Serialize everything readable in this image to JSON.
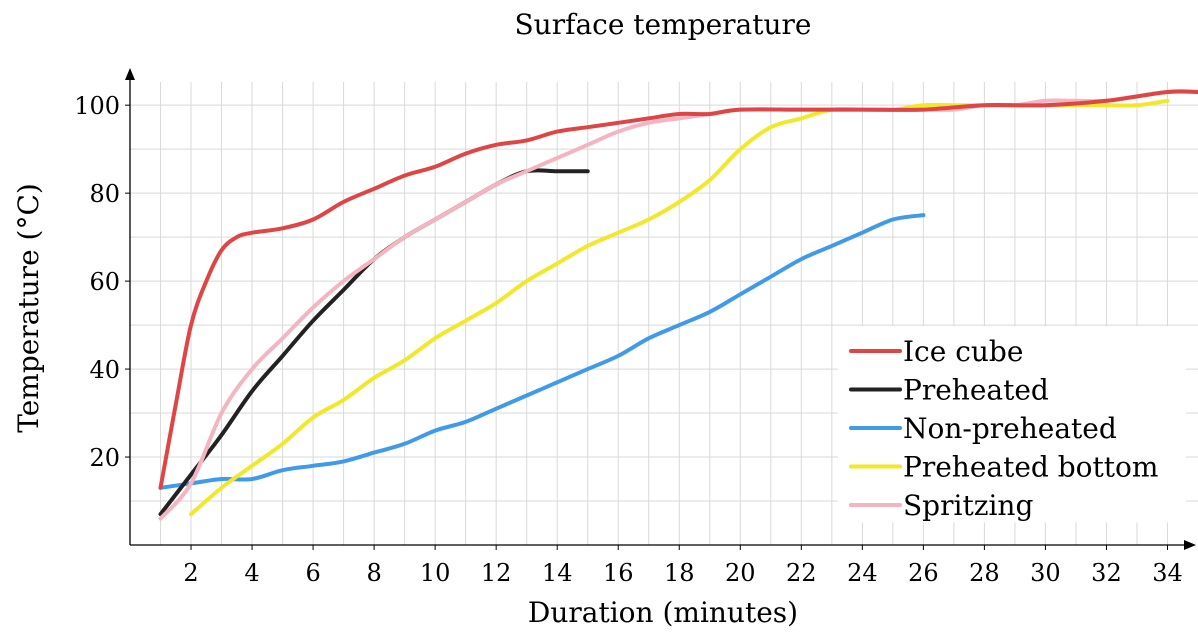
{
  "chart_data": {
    "type": "line",
    "title": "Surface temperature",
    "xlabel": "Duration (minutes)",
    "ylabel": "Temperature (°C)",
    "xlim": [
      0,
      35
    ],
    "ylim": [
      0,
      108
    ],
    "x_ticks": [
      2,
      4,
      6,
      8,
      10,
      12,
      14,
      16,
      18,
      20,
      22,
      24,
      26,
      28,
      30,
      32,
      34
    ],
    "y_ticks": [
      20,
      40,
      60,
      80,
      100
    ],
    "grid": true,
    "legend_position": "bottom-right",
    "series": [
      {
        "name": "Ice cube",
        "color": "#e04545",
        "x": [
          1,
          1.5,
          2,
          2.5,
          3,
          3.5,
          4,
          5,
          6,
          7,
          8,
          9,
          10,
          11,
          12,
          13,
          14,
          15,
          16,
          17,
          18,
          19,
          20,
          22,
          24,
          26,
          28,
          30,
          32,
          34,
          35
        ],
        "y": [
          13,
          32,
          50,
          60,
          67,
          70,
          71,
          72,
          74,
          78,
          81,
          84,
          86,
          89,
          91,
          92,
          94,
          95,
          96,
          97,
          98,
          98,
          99,
          99,
          99,
          99,
          100,
          100,
          101,
          103,
          103
        ]
      },
      {
        "name": "Preheated",
        "color": "#222222",
        "x": [
          1,
          2,
          3,
          4,
          5,
          6,
          7,
          8,
          9,
          10,
          11,
          12,
          13,
          14,
          15
        ],
        "y": [
          7,
          16,
          25,
          35,
          43,
          51,
          58,
          65,
          70,
          74,
          78,
          82,
          85,
          85,
          85
        ]
      },
      {
        "name": "Non-preheated",
        "color": "#3f9be8",
        "x": [
          1,
          2,
          3,
          4,
          5,
          6,
          7,
          8,
          9,
          10,
          11,
          12,
          13,
          14,
          15,
          16,
          17,
          18,
          19,
          20,
          21,
          22,
          23,
          24,
          25,
          26
        ],
        "y": [
          13,
          14,
          15,
          15,
          17,
          18,
          19,
          21,
          23,
          26,
          28,
          31,
          34,
          37,
          40,
          43,
          47,
          50,
          53,
          57,
          61,
          65,
          68,
          71,
          74,
          75
        ]
      },
      {
        "name": "Preheated bottom",
        "color": "#f2e82a",
        "x": [
          2,
          3,
          4,
          5,
          6,
          7,
          8,
          9,
          10,
          11,
          12,
          13,
          14,
          15,
          16,
          17,
          18,
          19,
          20,
          21,
          22,
          23,
          24,
          25,
          26,
          27,
          28,
          29,
          30,
          31,
          32,
          33,
          34
        ],
        "y": [
          7,
          13,
          18,
          23,
          29,
          33,
          38,
          42,
          47,
          51,
          55,
          60,
          64,
          68,
          71,
          74,
          78,
          83,
          90,
          95,
          97,
          99,
          99,
          99,
          100,
          100,
          100,
          100,
          100,
          100,
          100,
          100,
          101
        ]
      },
      {
        "name": "Spritzing",
        "color": "#f4b5c0",
        "x": [
          1,
          2,
          3,
          4,
          5,
          6,
          7,
          8,
          9,
          10,
          11,
          12,
          13,
          14,
          15,
          16,
          17,
          18,
          19,
          20,
          22,
          24,
          26,
          27,
          28,
          29,
          30,
          31,
          32,
          33,
          34,
          35
        ],
        "y": [
          6,
          14,
          30,
          40,
          47,
          54,
          60,
          65,
          70,
          74,
          78,
          82,
          85,
          88,
          91,
          94,
          96,
          97,
          98,
          99,
          99,
          99,
          99,
          99,
          100,
          100,
          101,
          101,
          101,
          102,
          103,
          103
        ]
      }
    ]
  }
}
